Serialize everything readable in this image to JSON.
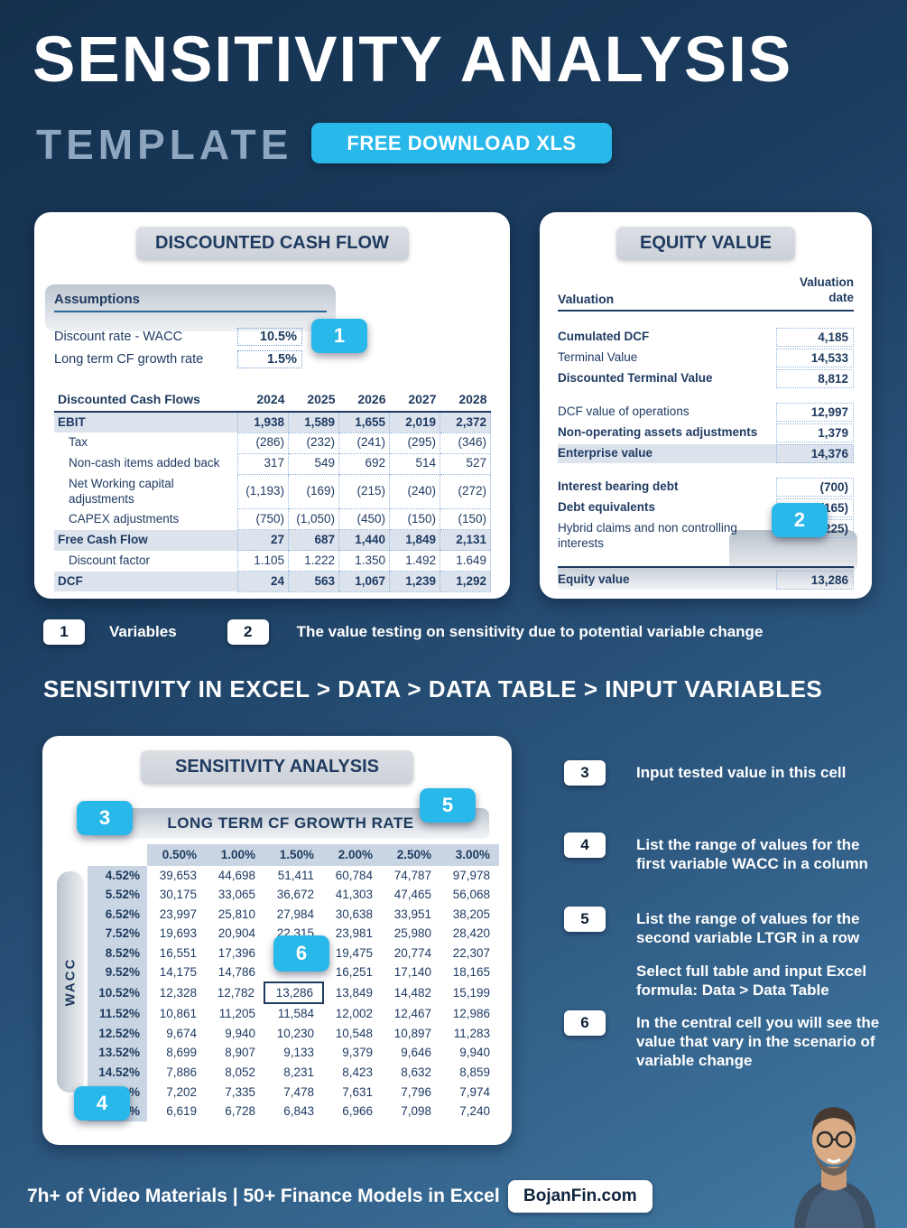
{
  "colors": {
    "accent_cyan": "#29b8ea",
    "navy": "#1e3a5f",
    "background_top": "#14304d",
    "background_bottom": "#427aa4"
  },
  "header": {
    "title": "SENSITIVITY ANALYSIS",
    "subtitle": "TEMPLATE",
    "download_button": "FREE DOWNLOAD XLS"
  },
  "dcf_panel": {
    "title": "DISCOUNTED CASH FLOW",
    "marker": "1",
    "assumptions": {
      "heading": "Assumptions",
      "rows": [
        {
          "label": "Discount rate - WACC",
          "value": "10.5%"
        },
        {
          "label": "Long term CF growth rate",
          "value": "1.5%"
        }
      ]
    },
    "table": {
      "columns": [
        "Discounted Cash Flows",
        "2024",
        "2025",
        "2026",
        "2027",
        "2028"
      ],
      "rows": [
        {
          "label": "EBIT",
          "style": "total",
          "values": [
            "1,938",
            "1,589",
            "1,655",
            "2,019",
            "2,372"
          ]
        },
        {
          "label": "Tax",
          "style": "indent",
          "values": [
            "(286)",
            "(232)",
            "(241)",
            "(295)",
            "(346)"
          ]
        },
        {
          "label": "Non-cash items added back",
          "style": "indent",
          "values": [
            "317",
            "549",
            "692",
            "514",
            "527"
          ]
        },
        {
          "label": "Net Working capital adjustments",
          "style": "indent",
          "values": [
            "(1,193)",
            "(169)",
            "(215)",
            "(240)",
            "(272)"
          ]
        },
        {
          "label": "CAPEX adjustments",
          "style": "indent",
          "values": [
            "(750)",
            "(1,050)",
            "(450)",
            "(150)",
            "(150)"
          ]
        },
        {
          "label": "Free Cash Flow",
          "style": "total",
          "values": [
            "27",
            "687",
            "1,440",
            "1,849",
            "2,131"
          ]
        },
        {
          "label": "Discount factor",
          "style": "indent",
          "values": [
            "1.105",
            "1.222",
            "1.350",
            "1.492",
            "1.649"
          ]
        },
        {
          "label": "DCF",
          "style": "total",
          "values": [
            "24",
            "563",
            "1,067",
            "1,239",
            "1,292"
          ]
        }
      ]
    }
  },
  "equity_panel": {
    "title": "EQUITY VALUE",
    "marker": "2",
    "columns": {
      "label": "Valuation",
      "value_header": "Valuation date"
    },
    "rows": [
      {
        "label": "Cumulated DCF",
        "value": "4,185",
        "bold": true
      },
      {
        "label": "Terminal Value",
        "value": "14,533"
      },
      {
        "label": "Discounted Terminal Value",
        "value": "8,812",
        "bold": true
      },
      {
        "spacer": true
      },
      {
        "label": "DCF value of operations",
        "value": "12,997"
      },
      {
        "label": "Non-operating assets adjustments",
        "value": "1,379",
        "bold": true
      },
      {
        "label": "Enterprise value",
        "value": "14,376",
        "bold": true,
        "shaded": true
      },
      {
        "spacer": true
      },
      {
        "label": "Interest bearing debt",
        "value": "(700)",
        "bold": true
      },
      {
        "label": "Debt equivalents",
        "value": "(165)",
        "bold": true
      },
      {
        "label": "Hybrid claims and non controlling interests",
        "value": "(225)"
      },
      {
        "spacer": true
      },
      {
        "label": "Equity value",
        "value": "13,286",
        "bold": true,
        "total": true
      }
    ]
  },
  "legend": {
    "items": [
      {
        "num": "1",
        "text": "Variables"
      },
      {
        "num": "2",
        "text": "The value testing on sensitivity due to potential variable change"
      }
    ]
  },
  "excel_path": "SENSITIVITY IN EXCEL > DATA > DATA TABLE > INPUT VARIABLES",
  "sensitivity_panel": {
    "title": "SENSITIVITY ANALYSIS",
    "axis_title": "LONG TERM CF GROWTH RATE",
    "row_axis_title": "WACC",
    "markers": {
      "m3": "3",
      "m4": "4",
      "m5": "5",
      "m6": "6"
    },
    "col_headers": [
      "0.50%",
      "1.00%",
      "1.50%",
      "2.00%",
      "2.50%",
      "3.00%"
    ],
    "rows": [
      {
        "wacc": "4.52%",
        "values": [
          "39,653",
          "44,698",
          "51,411",
          "60,784",
          "74,787",
          "97,978"
        ]
      },
      {
        "wacc": "5.52%",
        "values": [
          "30,175",
          "33,065",
          "36,672",
          "41,303",
          "47,465",
          "56,068"
        ]
      },
      {
        "wacc": "6.52%",
        "values": [
          "23,997",
          "25,810",
          "27,984",
          "30,638",
          "33,951",
          "38,205"
        ]
      },
      {
        "wacc": "7.52%",
        "values": [
          "19,693",
          "20,904",
          "22,315",
          "23,981",
          "25,980",
          "28,420"
        ]
      },
      {
        "wacc": "8.52%",
        "values": [
          "16,551",
          "17,396",
          "",
          "19,475",
          "20,774",
          "22,307"
        ]
      },
      {
        "wacc": "9.52%",
        "values": [
          "14,175",
          "14,786",
          "",
          "16,251",
          "17,140",
          "18,165"
        ]
      },
      {
        "wacc": "10.52%",
        "values": [
          "12,328",
          "12,782",
          "13,286",
          "13,849",
          "14,482",
          "15,199"
        ],
        "highlight_col": 2
      },
      {
        "wacc": "11.52%",
        "values": [
          "10,861",
          "11,205",
          "11,584",
          "12,002",
          "12,467",
          "12,986"
        ]
      },
      {
        "wacc": "12.52%",
        "values": [
          "9,674",
          "9,940",
          "10,230",
          "10,548",
          "10,897",
          "11,283"
        ]
      },
      {
        "wacc": "13.52%",
        "values": [
          "8,699",
          "8,907",
          "9,133",
          "9,379",
          "9,646",
          "9,940"
        ]
      },
      {
        "wacc": "14.52%",
        "values": [
          "7,886",
          "8,052",
          "8,231",
          "8,423",
          "8,632",
          "8,859"
        ]
      },
      {
        "wacc": "15.52%",
        "values": [
          "7,202",
          "7,335",
          "7,478",
          "7,631",
          "7,796",
          "7,974"
        ]
      },
      {
        "wacc": "16.52%",
        "values": [
          "6,619",
          "6,728",
          "6,843",
          "6,966",
          "7,098",
          "7,240"
        ]
      }
    ]
  },
  "annotations": [
    {
      "num": "3",
      "text": "Input tested value in this cell"
    },
    {
      "num": "4",
      "text": "List the range of values for the first variable WACC in a column"
    },
    {
      "num": "5",
      "text": "List the range of values for the second variable LTGR in a row"
    },
    {
      "num": "",
      "text": "Select full table and input Excel formula: Data > Data Table"
    },
    {
      "num": "6",
      "text": "In the central cell you will see the value that vary in the scenario of variable change"
    }
  ],
  "footer": {
    "tagline": "7h+ of Video Materials | 50+ Finance Models in Excel",
    "brand": "BojanFin.com"
  }
}
